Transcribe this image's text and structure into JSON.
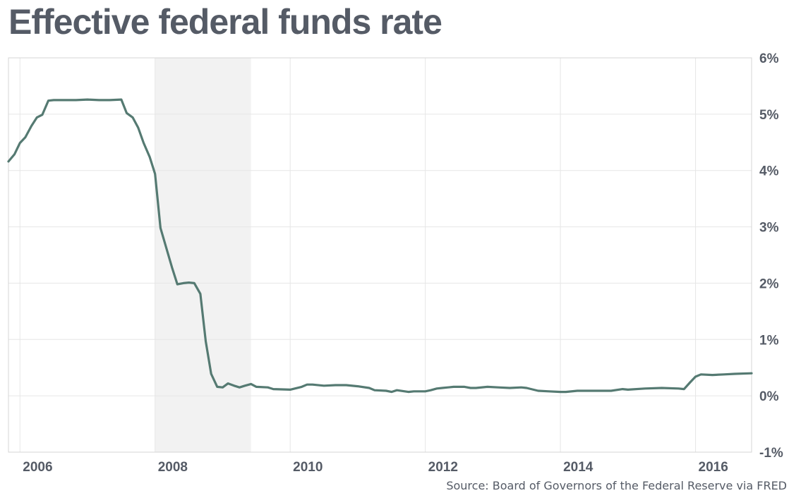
{
  "chart_data": {
    "type": "line",
    "title": "Effective federal funds rate",
    "source": "Source: Board of Governors of the Federal Reserve via FRED",
    "xlabel": "",
    "ylabel": "",
    "xlim": [
      2005.83,
      2016.83
    ],
    "ylim": [
      -1,
      6
    ],
    "x_ticks": [
      2006,
      2008,
      2010,
      2012,
      2014,
      2016
    ],
    "x_tick_labels": [
      "2006",
      "2008",
      "2010",
      "2012",
      "2014",
      "2016"
    ],
    "y_ticks": [
      6,
      5,
      4,
      3,
      2,
      1,
      0,
      -1
    ],
    "y_tick_labels": [
      "6%",
      "5%",
      "4%",
      "3%",
      "2%",
      "1%",
      "0%",
      "-1%"
    ],
    "y_axis_side": "right",
    "grid": true,
    "recession_shading": {
      "start": 2008.0,
      "end": 2009.42,
      "color": "#f2f2f2"
    },
    "series": [
      {
        "color": "#557a72",
        "points": [
          [
            2005.83,
            4.16
          ],
          [
            2005.92,
            4.29
          ],
          [
            2006.0,
            4.49
          ],
          [
            2006.08,
            4.59
          ],
          [
            2006.17,
            4.79
          ],
          [
            2006.25,
            4.94
          ],
          [
            2006.33,
            4.99
          ],
          [
            2006.42,
            5.24
          ],
          [
            2006.5,
            5.25
          ],
          [
            2006.67,
            5.25
          ],
          [
            2006.83,
            5.25
          ],
          [
            2007.0,
            5.26
          ],
          [
            2007.17,
            5.25
          ],
          [
            2007.33,
            5.25
          ],
          [
            2007.5,
            5.26
          ],
          [
            2007.58,
            5.02
          ],
          [
            2007.67,
            4.94
          ],
          [
            2007.75,
            4.76
          ],
          [
            2007.83,
            4.49
          ],
          [
            2007.92,
            4.24
          ],
          [
            2008.0,
            3.94
          ],
          [
            2008.08,
            2.98
          ],
          [
            2008.17,
            2.61
          ],
          [
            2008.25,
            2.28
          ],
          [
            2008.33,
            1.98
          ],
          [
            2008.42,
            2.0
          ],
          [
            2008.5,
            2.01
          ],
          [
            2008.58,
            2.0
          ],
          [
            2008.67,
            1.81
          ],
          [
            2008.75,
            0.97
          ],
          [
            2008.83,
            0.39
          ],
          [
            2008.92,
            0.16
          ],
          [
            2009.0,
            0.15
          ],
          [
            2009.08,
            0.22
          ],
          [
            2009.17,
            0.18
          ],
          [
            2009.25,
            0.15
          ],
          [
            2009.33,
            0.18
          ],
          [
            2009.42,
            0.21
          ],
          [
            2009.5,
            0.16
          ],
          [
            2009.67,
            0.15
          ],
          [
            2009.75,
            0.12
          ],
          [
            2010.0,
            0.11
          ],
          [
            2010.17,
            0.16
          ],
          [
            2010.25,
            0.2
          ],
          [
            2010.33,
            0.2
          ],
          [
            2010.5,
            0.18
          ],
          [
            2010.67,
            0.19
          ],
          [
            2010.83,
            0.19
          ],
          [
            2011.0,
            0.17
          ],
          [
            2011.17,
            0.14
          ],
          [
            2011.25,
            0.1
          ],
          [
            2011.42,
            0.09
          ],
          [
            2011.5,
            0.07
          ],
          [
            2011.58,
            0.1
          ],
          [
            2011.75,
            0.07
          ],
          [
            2011.83,
            0.08
          ],
          [
            2012.0,
            0.08
          ],
          [
            2012.08,
            0.1
          ],
          [
            2012.17,
            0.13
          ],
          [
            2012.25,
            0.14
          ],
          [
            2012.42,
            0.16
          ],
          [
            2012.58,
            0.16
          ],
          [
            2012.67,
            0.14
          ],
          [
            2012.75,
            0.14
          ],
          [
            2012.92,
            0.16
          ],
          [
            2013.08,
            0.15
          ],
          [
            2013.25,
            0.14
          ],
          [
            2013.42,
            0.15
          ],
          [
            2013.5,
            0.14
          ],
          [
            2013.67,
            0.09
          ],
          [
            2013.83,
            0.08
          ],
          [
            2014.0,
            0.07
          ],
          [
            2014.08,
            0.07
          ],
          [
            2014.25,
            0.09
          ],
          [
            2014.5,
            0.09
          ],
          [
            2014.75,
            0.09
          ],
          [
            2014.92,
            0.12
          ],
          [
            2015.0,
            0.11
          ],
          [
            2015.25,
            0.13
          ],
          [
            2015.5,
            0.14
          ],
          [
            2015.75,
            0.13
          ],
          [
            2015.83,
            0.12
          ],
          [
            2015.92,
            0.24
          ],
          [
            2016.0,
            0.34
          ],
          [
            2016.08,
            0.38
          ],
          [
            2016.25,
            0.37
          ],
          [
            2016.42,
            0.38
          ],
          [
            2016.58,
            0.39
          ],
          [
            2016.83,
            0.4
          ]
        ]
      }
    ]
  }
}
